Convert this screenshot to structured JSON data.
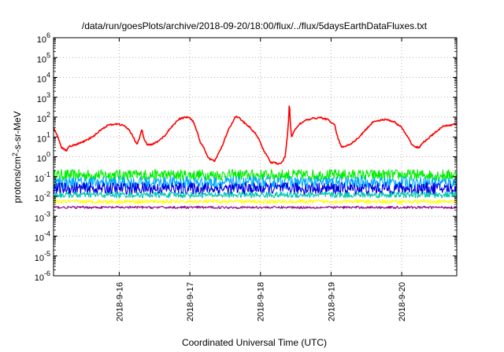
{
  "chart_data": {
    "type": "line",
    "title": "/data/run/goesPlots/archive/2018-09-20/18:00/flux/../flux/5daysEarthDataFluxes.txt",
    "xlabel": "Coordinated Universal Time (UTC)",
    "ylabel": "protons/cm²-s-sr-MeV",
    "y_scale": "log",
    "xlim": [
      15.07,
      20.78
    ],
    "ylim": [
      1e-06,
      1000000.0
    ],
    "x_ticks": [
      {
        "pos": 16,
        "label": "2018-9-16"
      },
      {
        "pos": 17,
        "label": "2018-9-17"
      },
      {
        "pos": 18,
        "label": "2018-9-18"
      },
      {
        "pos": 19,
        "label": "2018-9-19"
      },
      {
        "pos": 20,
        "label": "2018-9-20"
      }
    ],
    "y_ticks": [
      {
        "exp": 6,
        "base": "10",
        "sup": "6"
      },
      {
        "exp": 5,
        "base": "10",
        "sup": "5"
      },
      {
        "exp": 4,
        "base": "10",
        "sup": "4"
      },
      {
        "exp": 3,
        "base": "10",
        "sup": "3"
      },
      {
        "exp": 2,
        "base": "10",
        "sup": "2"
      },
      {
        "exp": 1,
        "base": "10",
        "sup": "1"
      },
      {
        "exp": 0,
        "base": "10",
        "sup": "0"
      },
      {
        "exp": -1,
        "base": "10",
        "sup": "-1"
      },
      {
        "exp": -2,
        "base": "10",
        "sup": "-2"
      },
      {
        "exp": -3,
        "base": "10",
        "sup": "-3"
      },
      {
        "exp": -4,
        "base": "10",
        "sup": "-4"
      },
      {
        "exp": -5,
        "base": "10",
        "sup": "-5"
      },
      {
        "exp": -6,
        "base": "10",
        "sup": "-6"
      }
    ],
    "grid": true,
    "series": [
      {
        "color": "#ff0000",
        "noise": 0.08,
        "x": [
          15.07,
          15.12,
          15.18,
          15.25,
          15.3,
          15.38,
          15.45,
          15.55,
          15.65,
          15.75,
          15.85,
          15.95,
          16.05,
          16.1,
          16.15,
          16.2,
          16.25,
          16.3,
          16.32,
          16.35,
          16.4,
          16.45,
          16.55,
          16.65,
          16.75,
          16.85,
          16.95,
          17.0,
          17.05,
          17.1,
          17.15,
          17.2,
          17.25,
          17.3,
          17.35,
          17.45,
          17.55,
          17.65,
          17.7,
          17.75,
          17.85,
          17.95,
          18.05,
          18.1,
          18.15,
          18.2,
          18.25,
          18.3,
          18.35,
          18.38,
          18.4,
          18.41,
          18.42,
          18.44,
          18.48,
          18.55,
          18.65,
          18.75,
          18.85,
          18.95,
          19.05,
          19.1,
          19.15,
          19.2,
          19.25,
          19.3,
          19.4,
          19.5,
          19.6,
          19.7,
          19.8,
          19.9,
          20.0,
          20.05,
          20.1,
          20.15,
          20.2,
          20.25,
          20.3,
          20.4,
          20.5,
          20.6,
          20.7,
          20.78
        ],
        "y": [
          30,
          12,
          3,
          2,
          3.5,
          4,
          5,
          7,
          12,
          25,
          40,
          45,
          40,
          30,
          20,
          10,
          4,
          12,
          25,
          8,
          4,
          4,
          6,
          12,
          35,
          80,
          100,
          90,
          60,
          20,
          5,
          3,
          1,
          0.7,
          0.6,
          3,
          25,
          110,
          90,
          60,
          30,
          12,
          2,
          1,
          0.5,
          0.5,
          0.45,
          0.5,
          1,
          10,
          80,
          800,
          80,
          10,
          20,
          45,
          70,
          85,
          95,
          75,
          40,
          8,
          3,
          3.5,
          4,
          5,
          10,
          25,
          60,
          70,
          75,
          55,
          30,
          15,
          8,
          4,
          3,
          3,
          5,
          10,
          20,
          35,
          40,
          45
        ]
      },
      {
        "color": "#00ee00",
        "base": 0.12,
        "noise": 0.28
      },
      {
        "color": "#00aaff",
        "base": 0.05,
        "noise": 0.3
      },
      {
        "color": "#0000dd",
        "base": 0.025,
        "noise": 0.3
      },
      {
        "color": "#00c8b0",
        "base": 0.012,
        "noise": 0.15
      },
      {
        "color": "#ffff00",
        "base": 0.0055,
        "noise": 0.1
      },
      {
        "color": "#880088",
        "base": 0.0028,
        "noise": 0.06
      }
    ]
  }
}
